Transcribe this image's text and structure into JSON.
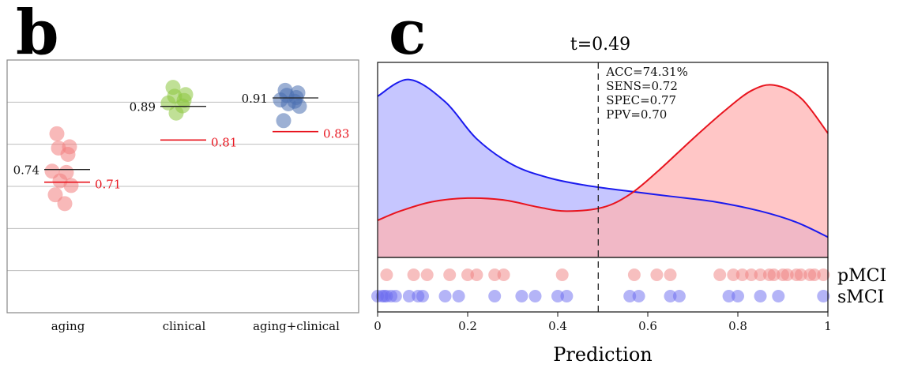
{
  "panels": {
    "b_label": "b",
    "c_label": "c"
  },
  "chart_data": [
    {
      "type": "scatter",
      "panel": "b",
      "categories": [
        "aging",
        "clinical",
        "aging+clinical"
      ],
      "ylim": [
        0.4,
        1.0
      ],
      "gridlines": [
        0.5,
        0.6,
        0.7,
        0.8,
        0.9
      ],
      "grid": true,
      "series": [
        {
          "category": "aging",
          "color": "#f28080",
          "points": [
            0.825,
            0.794,
            0.791,
            0.776,
            0.736,
            0.733,
            0.713,
            0.702,
            0.68,
            0.659
          ],
          "mean": 0.74,
          "mean_label": "0.74",
          "baseline": 0.71,
          "baseline_label": "0.71"
        },
        {
          "category": "clinical",
          "color": "#8cc63f",
          "points": [
            0.935,
            0.918,
            0.914,
            0.904,
            0.898,
            0.891,
            0.874
          ],
          "mean": 0.89,
          "mean_label": "0.89",
          "baseline": 0.81,
          "baseline_label": "0.81"
        },
        {
          "category": "aging+clinical",
          "color": "#4a6fb0",
          "points": [
            0.928,
            0.922,
            0.916,
            0.911,
            0.905,
            0.902,
            0.896,
            0.89,
            0.856
          ],
          "mean": 0.91,
          "mean_label": "0.91",
          "baseline": 0.83,
          "baseline_label": "0.83"
        }
      ]
    },
    {
      "type": "area",
      "panel": "c",
      "title": "t=0.49",
      "xlabel": "Prediction",
      "xlim": [
        0,
        1
      ],
      "xticks": [
        "0",
        "0.2",
        "0.4",
        "0.6",
        "0.8",
        "1"
      ],
      "threshold": 0.49,
      "annotations": [
        "ACC=74.31%",
        "SENS=0.72",
        "SPEC=0.77",
        "PPV=0.70"
      ],
      "density": {
        "sMCI": {
          "color": "#1a1aee",
          "fill": "#b3b3ff",
          "x": [
            0,
            0.07,
            0.15,
            0.22,
            0.3,
            0.38,
            0.46,
            0.55,
            0.65,
            0.75,
            0.85,
            0.93,
            1.0
          ],
          "y": [
            0.87,
            0.96,
            0.84,
            0.64,
            0.5,
            0.43,
            0.39,
            0.36,
            0.33,
            0.3,
            0.25,
            0.19,
            0.11
          ]
        },
        "pMCI": {
          "color": "#e8141e",
          "fill": "#ffb3b3",
          "x": [
            0,
            0.05,
            0.12,
            0.2,
            0.28,
            0.36,
            0.42,
            0.5,
            0.56,
            0.62,
            0.7,
            0.77,
            0.83,
            0.88,
            0.94,
            1.0
          ],
          "y": [
            0.2,
            0.25,
            0.3,
            0.32,
            0.31,
            0.27,
            0.25,
            0.27,
            0.34,
            0.46,
            0.64,
            0.79,
            0.9,
            0.93,
            0.86,
            0.67
          ]
        }
      },
      "rug": {
        "pMCI": {
          "label": "pMCI",
          "color": "#f08080",
          "x": [
            0.02,
            0.08,
            0.11,
            0.16,
            0.2,
            0.22,
            0.26,
            0.28,
            0.41,
            0.57,
            0.62,
            0.65,
            0.76,
            0.79,
            0.81,
            0.83,
            0.85,
            0.87,
            0.88,
            0.9,
            0.91,
            0.93,
            0.94,
            0.96,
            0.97,
            0.99
          ]
        },
        "sMCI": {
          "label": "sMCI",
          "color": "#6a6aef",
          "x": [
            0.0,
            0.01,
            0.015,
            0.02,
            0.03,
            0.04,
            0.07,
            0.09,
            0.1,
            0.15,
            0.18,
            0.26,
            0.32,
            0.35,
            0.4,
            0.42,
            0.56,
            0.58,
            0.65,
            0.67,
            0.78,
            0.8,
            0.85,
            0.89,
            0.99
          ]
        }
      }
    }
  ]
}
